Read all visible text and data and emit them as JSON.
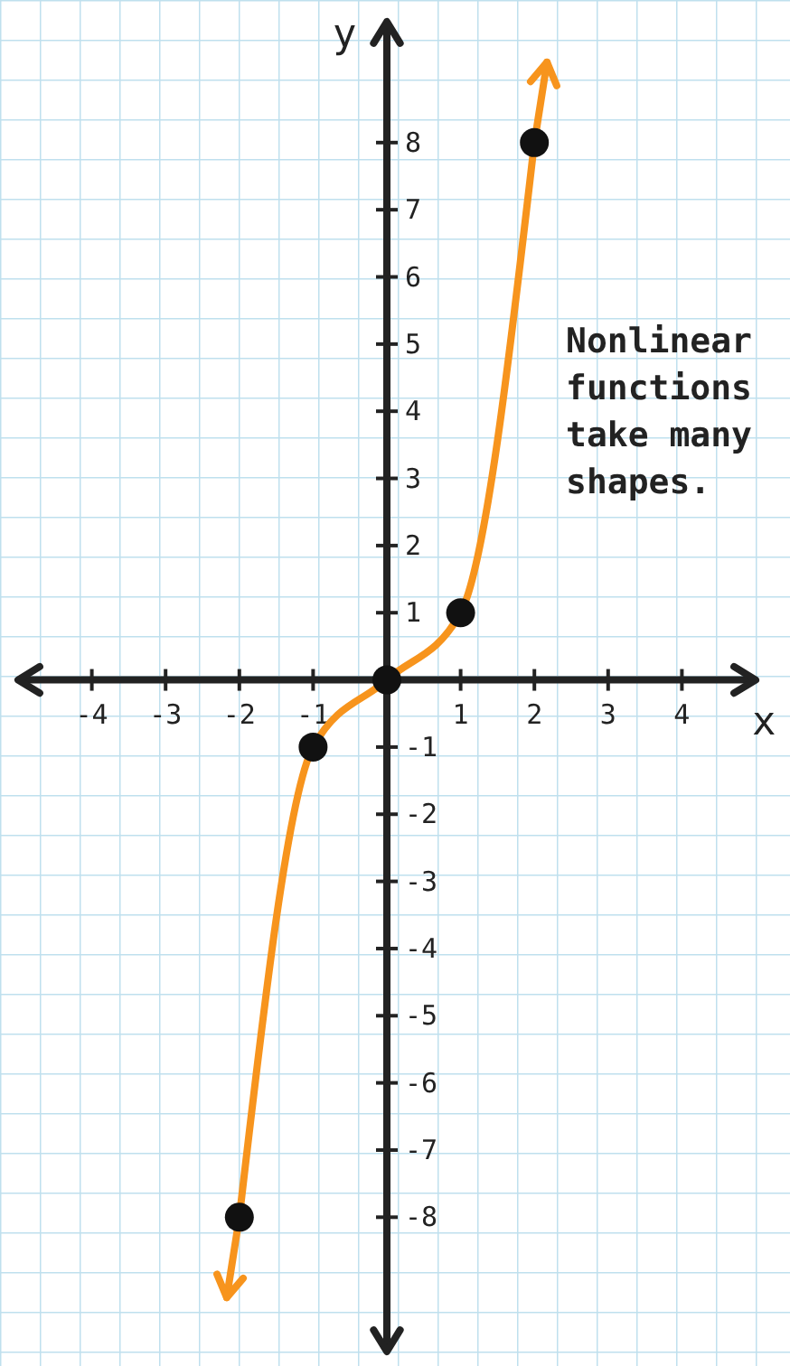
{
  "chart_data": {
    "type": "line",
    "xlabel": "x",
    "ylabel": "y",
    "x": [
      -2,
      -1,
      0,
      1,
      2
    ],
    "series": [
      {
        "color": "#f7941d",
        "values": [
          -8,
          -1,
          0,
          1,
          8
        ]
      }
    ],
    "marker": "circle",
    "xlim": [
      -5,
      5
    ],
    "xticks": [
      -4,
      -3,
      -2,
      -1,
      1,
      2,
      3,
      4
    ],
    "ylim": [
      -10,
      9.8
    ],
    "yticks": [
      -8,
      -7,
      -6,
      -5,
      -4,
      -3,
      -2,
      -1,
      1,
      2,
      3,
      4,
      5,
      6,
      7,
      8
    ],
    "annotations": [
      "Nonlinear functions take many shapes."
    ]
  }
}
